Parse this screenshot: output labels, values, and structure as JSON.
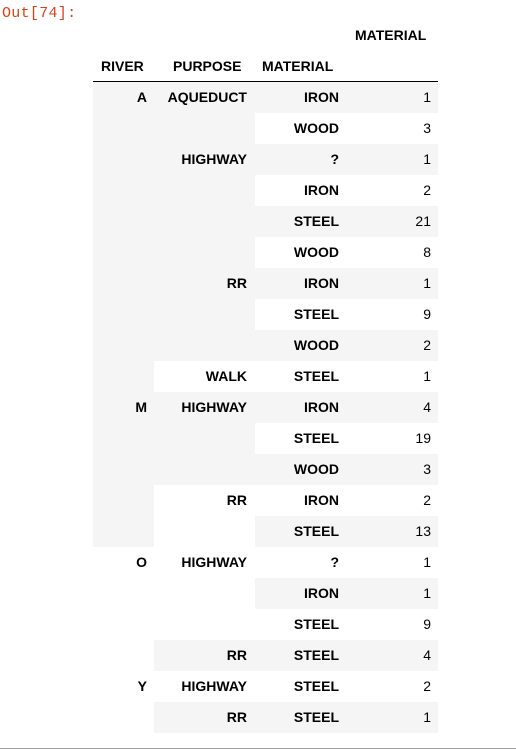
{
  "prompt": "Out[74]:",
  "columns": {
    "value_header": "MATERIAL",
    "index_names": [
      "RIVER",
      "PURPOSE",
      "MATERIAL"
    ]
  },
  "rows": [
    {
      "river": "A",
      "purpose": "AQUEDUCT",
      "material": "IRON",
      "value": "1"
    },
    {
      "river": "",
      "purpose": "",
      "material": "WOOD",
      "value": "3"
    },
    {
      "river": "",
      "purpose": "HIGHWAY",
      "material": "?",
      "value": "1"
    },
    {
      "river": "",
      "purpose": "",
      "material": "IRON",
      "value": "2"
    },
    {
      "river": "",
      "purpose": "",
      "material": "STEEL",
      "value": "21"
    },
    {
      "river": "",
      "purpose": "",
      "material": "WOOD",
      "value": "8"
    },
    {
      "river": "",
      "purpose": "RR",
      "material": "IRON",
      "value": "1"
    },
    {
      "river": "",
      "purpose": "",
      "material": "STEEL",
      "value": "9"
    },
    {
      "river": "",
      "purpose": "",
      "material": "WOOD",
      "value": "2"
    },
    {
      "river": "",
      "purpose": "WALK",
      "material": "STEEL",
      "value": "1"
    },
    {
      "river": "M",
      "purpose": "HIGHWAY",
      "material": "IRON",
      "value": "4"
    },
    {
      "river": "",
      "purpose": "",
      "material": "STEEL",
      "value": "19"
    },
    {
      "river": "",
      "purpose": "",
      "material": "WOOD",
      "value": "3"
    },
    {
      "river": "",
      "purpose": "RR",
      "material": "IRON",
      "value": "2"
    },
    {
      "river": "",
      "purpose": "",
      "material": "STEEL",
      "value": "13"
    },
    {
      "river": "O",
      "purpose": "HIGHWAY",
      "material": "?",
      "value": "1"
    },
    {
      "river": "",
      "purpose": "",
      "material": "IRON",
      "value": "1"
    },
    {
      "river": "",
      "purpose": "",
      "material": "STEEL",
      "value": "9"
    },
    {
      "river": "",
      "purpose": "RR",
      "material": "STEEL",
      "value": "4"
    },
    {
      "river": "Y",
      "purpose": "HIGHWAY",
      "material": "STEEL",
      "value": "2"
    },
    {
      "river": "",
      "purpose": "RR",
      "material": "STEEL",
      "value": "1"
    }
  ],
  "colors": {
    "prompt": "#d84315",
    "stripe": "#f5f5f5"
  }
}
